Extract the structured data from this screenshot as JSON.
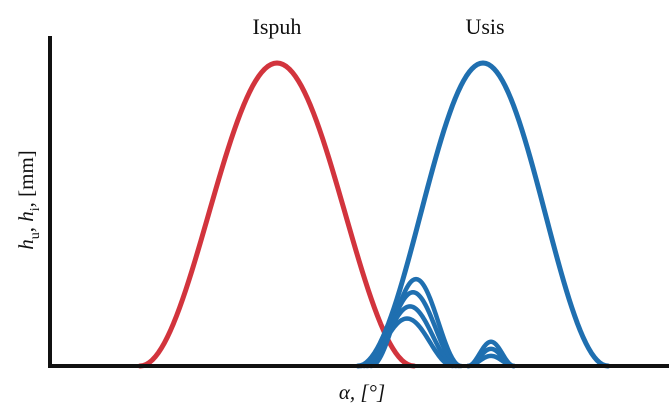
{
  "chart_data": {
    "type": "line",
    "xlabel": "α, [°]",
    "ylabel": "h_u, h_i, [mm]",
    "xlim": [
      0,
      619
    ],
    "ylim": [
      0,
      300
    ],
    "grid": false,
    "legend": "none",
    "colors": {
      "exhaust": "#d2343d",
      "intake": "#1f6fb0",
      "axis": "#111111"
    },
    "series": [
      {
        "name": "Ispuh",
        "center": 227,
        "half_width": 137,
        "peak": 300
      },
      {
        "name": "Usis",
        "center": 433,
        "half_width": 125,
        "peak": 300
      }
    ],
    "secondary_lifts": [
      {
        "center": 366,
        "half_width": 45,
        "peak": 86
      },
      {
        "center": 363,
        "half_width": 46,
        "peak": 73
      },
      {
        "center": 360,
        "half_width": 46,
        "peak": 59
      },
      {
        "center": 357,
        "half_width": 46,
        "peak": 47
      },
      {
        "center": 441,
        "half_width": 23,
        "peak": 24
      },
      {
        "center": 441,
        "half_width": 23,
        "peak": 17
      },
      {
        "center": 441,
        "half_width": 23,
        "peak": 10
      }
    ]
  }
}
